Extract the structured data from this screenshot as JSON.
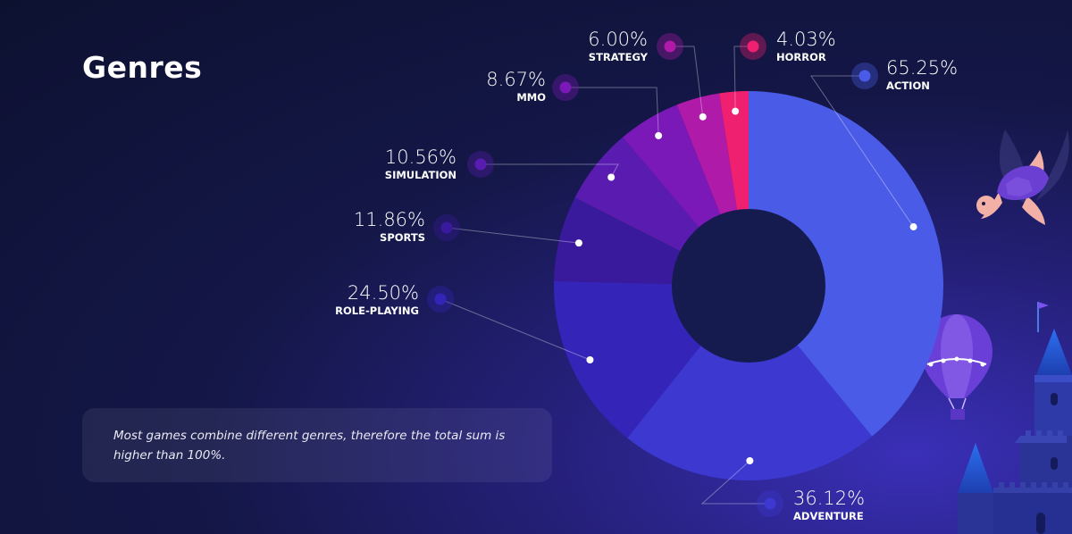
{
  "title": "Genres",
  "note": "Most games combine different genres, therefore the total sum is higher than 100%.",
  "chart_data": {
    "type": "pie",
    "title": "Genres",
    "slices": [
      {
        "name": "ACTION",
        "value": 65.25,
        "label": "65.25%",
        "color": "#4a5be8"
      },
      {
        "name": "ADVENTURE",
        "value": 36.12,
        "label": "36.12%",
        "color": "#3c38d0"
      },
      {
        "name": "ROLE-PLAYING",
        "value": 24.5,
        "label": "24.50%",
        "color": "#3524b8"
      },
      {
        "name": "SPORTS",
        "value": 11.86,
        "label": "11.86%",
        "color": "#3a1a9c"
      },
      {
        "name": "SIMULATION",
        "value": 10.56,
        "label": "10.56%",
        "color": "#5a1cb0"
      },
      {
        "name": "MMO",
        "value": 8.67,
        "label": "8.67%",
        "color": "#7a18b8"
      },
      {
        "name": "STRATEGY",
        "value": 6.0,
        "label": "6.00%",
        "color": "#b01aa8"
      },
      {
        "name": "HORROR",
        "value": 4.03,
        "label": "4.03%",
        "color": "#f02070"
      }
    ]
  }
}
